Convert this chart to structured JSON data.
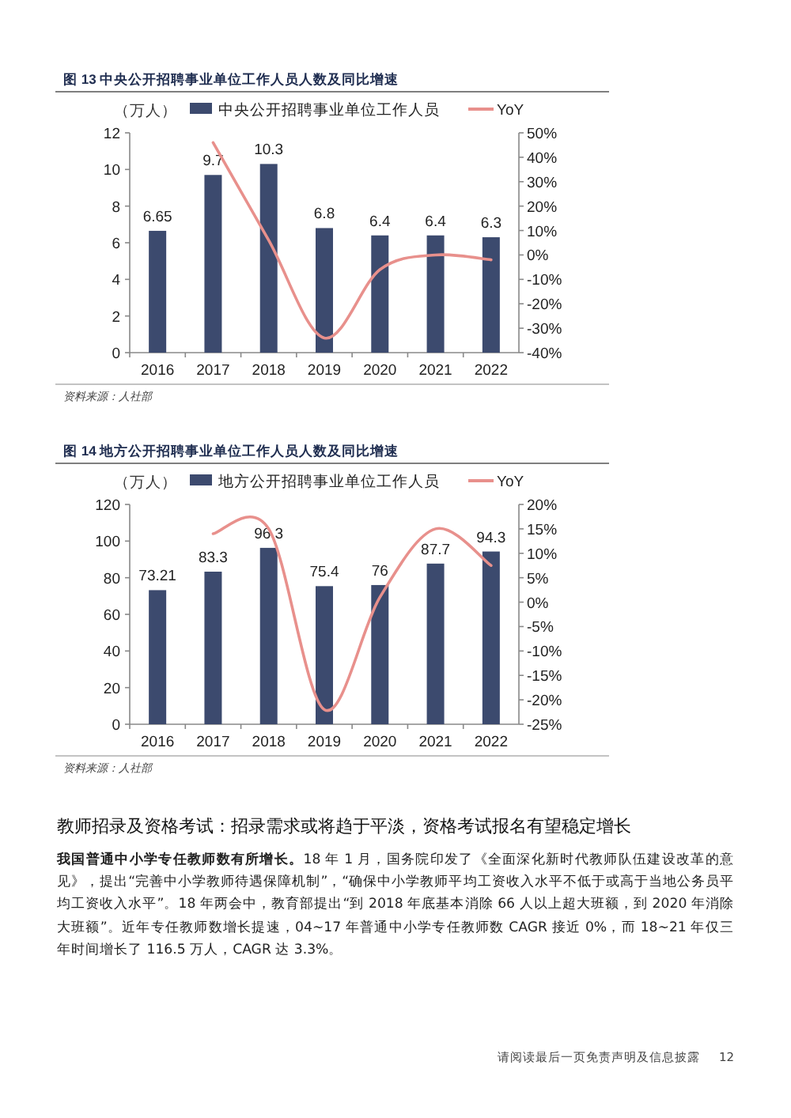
{
  "chart_data": [
    {
      "type": "bar",
      "title": "图 13  中央公开招聘事业单位工作人员人数及同比增速",
      "ylabel": "（万人）",
      "categories": [
        "2016",
        "2017",
        "2018",
        "2019",
        "2020",
        "2021",
        "2022"
      ],
      "series": [
        {
          "name": "中央公开招聘事业单位工作人员",
          "type": "bar",
          "color": "#3c4a6e",
          "values": [
            6.65,
            9.7,
            10.3,
            6.8,
            6.4,
            6.4,
            6.3
          ],
          "value_labels": [
            "6.65",
            "9.7",
            "10.3",
            "6.8",
            "6.4",
            "6.4",
            "6.3"
          ]
        },
        {
          "name": "YoY",
          "type": "line",
          "axis": "y2",
          "color": "#e8908c",
          "values": [
            null,
            46,
            6,
            -34,
            -6,
            0,
            -2
          ]
        }
      ],
      "ylim": [
        0,
        12
      ],
      "yticks": [
        0,
        2,
        4,
        6,
        8,
        10,
        12
      ],
      "y2lim": [
        -40,
        50
      ],
      "y2ticks": [
        {
          "value": -40,
          "label": "-40%"
        },
        {
          "value": -30,
          "label": "-30%"
        },
        {
          "value": -20,
          "label": "-20%"
        },
        {
          "value": -10,
          "label": "-10%"
        },
        {
          "value": 0,
          "label": "0%"
        },
        {
          "value": 10,
          "label": "10%"
        },
        {
          "value": 20,
          "label": "20%"
        },
        {
          "value": 30,
          "label": "30%"
        },
        {
          "value": 40,
          "label": "40%"
        },
        {
          "value": 50,
          "label": "50%"
        }
      ],
      "legend": "top",
      "annotations": [
        "资料来源：人社部"
      ]
    },
    {
      "type": "bar",
      "title": "图 14  地方公开招聘事业单位工作人员人数及同比增速",
      "ylabel": "（万人）",
      "categories": [
        "2016",
        "2017",
        "2018",
        "2019",
        "2020",
        "2021",
        "2022"
      ],
      "series": [
        {
          "name": "地方公开招聘事业单位工作人员",
          "type": "bar",
          "color": "#3c4a6e",
          "values": [
            73.21,
            83.3,
            96.3,
            75.4,
            76,
            87.7,
            94.3
          ],
          "value_labels": [
            "73.21",
            "83.3",
            "96.3",
            "75.4",
            "76",
            "87.7",
            "94.3"
          ]
        },
        {
          "name": "YoY",
          "type": "line",
          "axis": "y2",
          "color": "#e8908c",
          "values": [
            null,
            14,
            15,
            -22,
            1,
            15,
            7.5
          ]
        }
      ],
      "ylim": [
        0,
        120
      ],
      "yticks": [
        0,
        20,
        40,
        60,
        80,
        100,
        120
      ],
      "y2lim": [
        -25,
        20
      ],
      "y2ticks": [
        {
          "value": -25,
          "label": "-25%"
        },
        {
          "value": -20,
          "label": "-20%"
        },
        {
          "value": -15,
          "label": "-15%"
        },
        {
          "value": -10,
          "label": "-10%"
        },
        {
          "value": -5,
          "label": "-5%"
        },
        {
          "value": 0,
          "label": "0%"
        },
        {
          "value": 5,
          "label": "5%"
        },
        {
          "value": 10,
          "label": "10%"
        },
        {
          "value": 15,
          "label": "15%"
        },
        {
          "value": 20,
          "label": "20%"
        }
      ],
      "legend": "top",
      "annotations": [
        "资料来源：人社部"
      ]
    },
    {
      "type": "other",
      "title": "教师招录及资格考试：招录需求或将趋于平淡，资格考试报名有望稳定增长",
      "annotations": [
        "**我国普通中小学专任教师数有所增长。**18 年 1 月，国务院印发了《全面深化新时代教师队伍建设改革的意见》，提出“完善中小学教师待遇保障机制”，“确保中小学教师平均工资收入水平不低于或高于当地公务员平均工资收入水平”。18 年两会中，教育部提出“到 2018 年底基本消除 66 人以上超大班额，到 2020 年消除大班额”。近年专任教师数增长提速，04~17 年普通中小学专任教师数 CAGR 接近 0%，而 18~21 年仅三年时间增长了 116.5 万人，CAGR 达 3.3%。",
        "请阅读最后一页免责声明及信息披露",
        "12"
      ]
    }
  ]
}
